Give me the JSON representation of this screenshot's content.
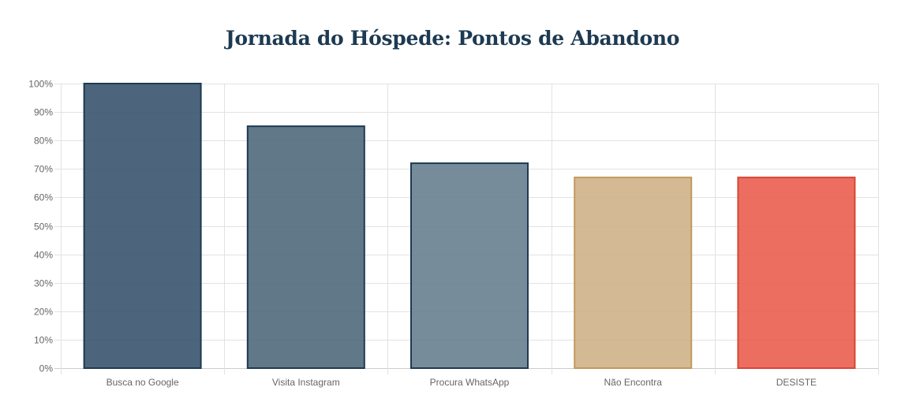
{
  "chart_data": {
    "type": "bar",
    "title": "Jornada do Hóspede: Pontos de Abandono",
    "categories": [
      "Busca no Google",
      "Visita Instagram",
      "Procura WhatsApp",
      "Não Encontra",
      "DESISTE"
    ],
    "values": [
      100,
      85,
      72,
      67,
      67
    ],
    "y_unit": "%",
    "ylim": [
      0,
      100
    ],
    "y_ticks": [
      "0%",
      "10%",
      "20%",
      "30%",
      "40%",
      "50%",
      "60%",
      "70%",
      "80%",
      "90%",
      "100%"
    ],
    "xlabel": "",
    "ylabel": "",
    "grid": true,
    "legend": "none",
    "bar_fills": [
      "#34506a",
      "#4a6577",
      "#647c8c",
      "#cdb085",
      "#e95a4a"
    ],
    "bar_borders": [
      "#1d3a52",
      "#1d3a52",
      "#1d3a52",
      "#c29a5c",
      "#d84535"
    ],
    "bar_opacity": 0.88
  },
  "colors": {
    "title": "#1d3a52",
    "grid": "#e2e2e2",
    "tick_text": "#666666"
  }
}
